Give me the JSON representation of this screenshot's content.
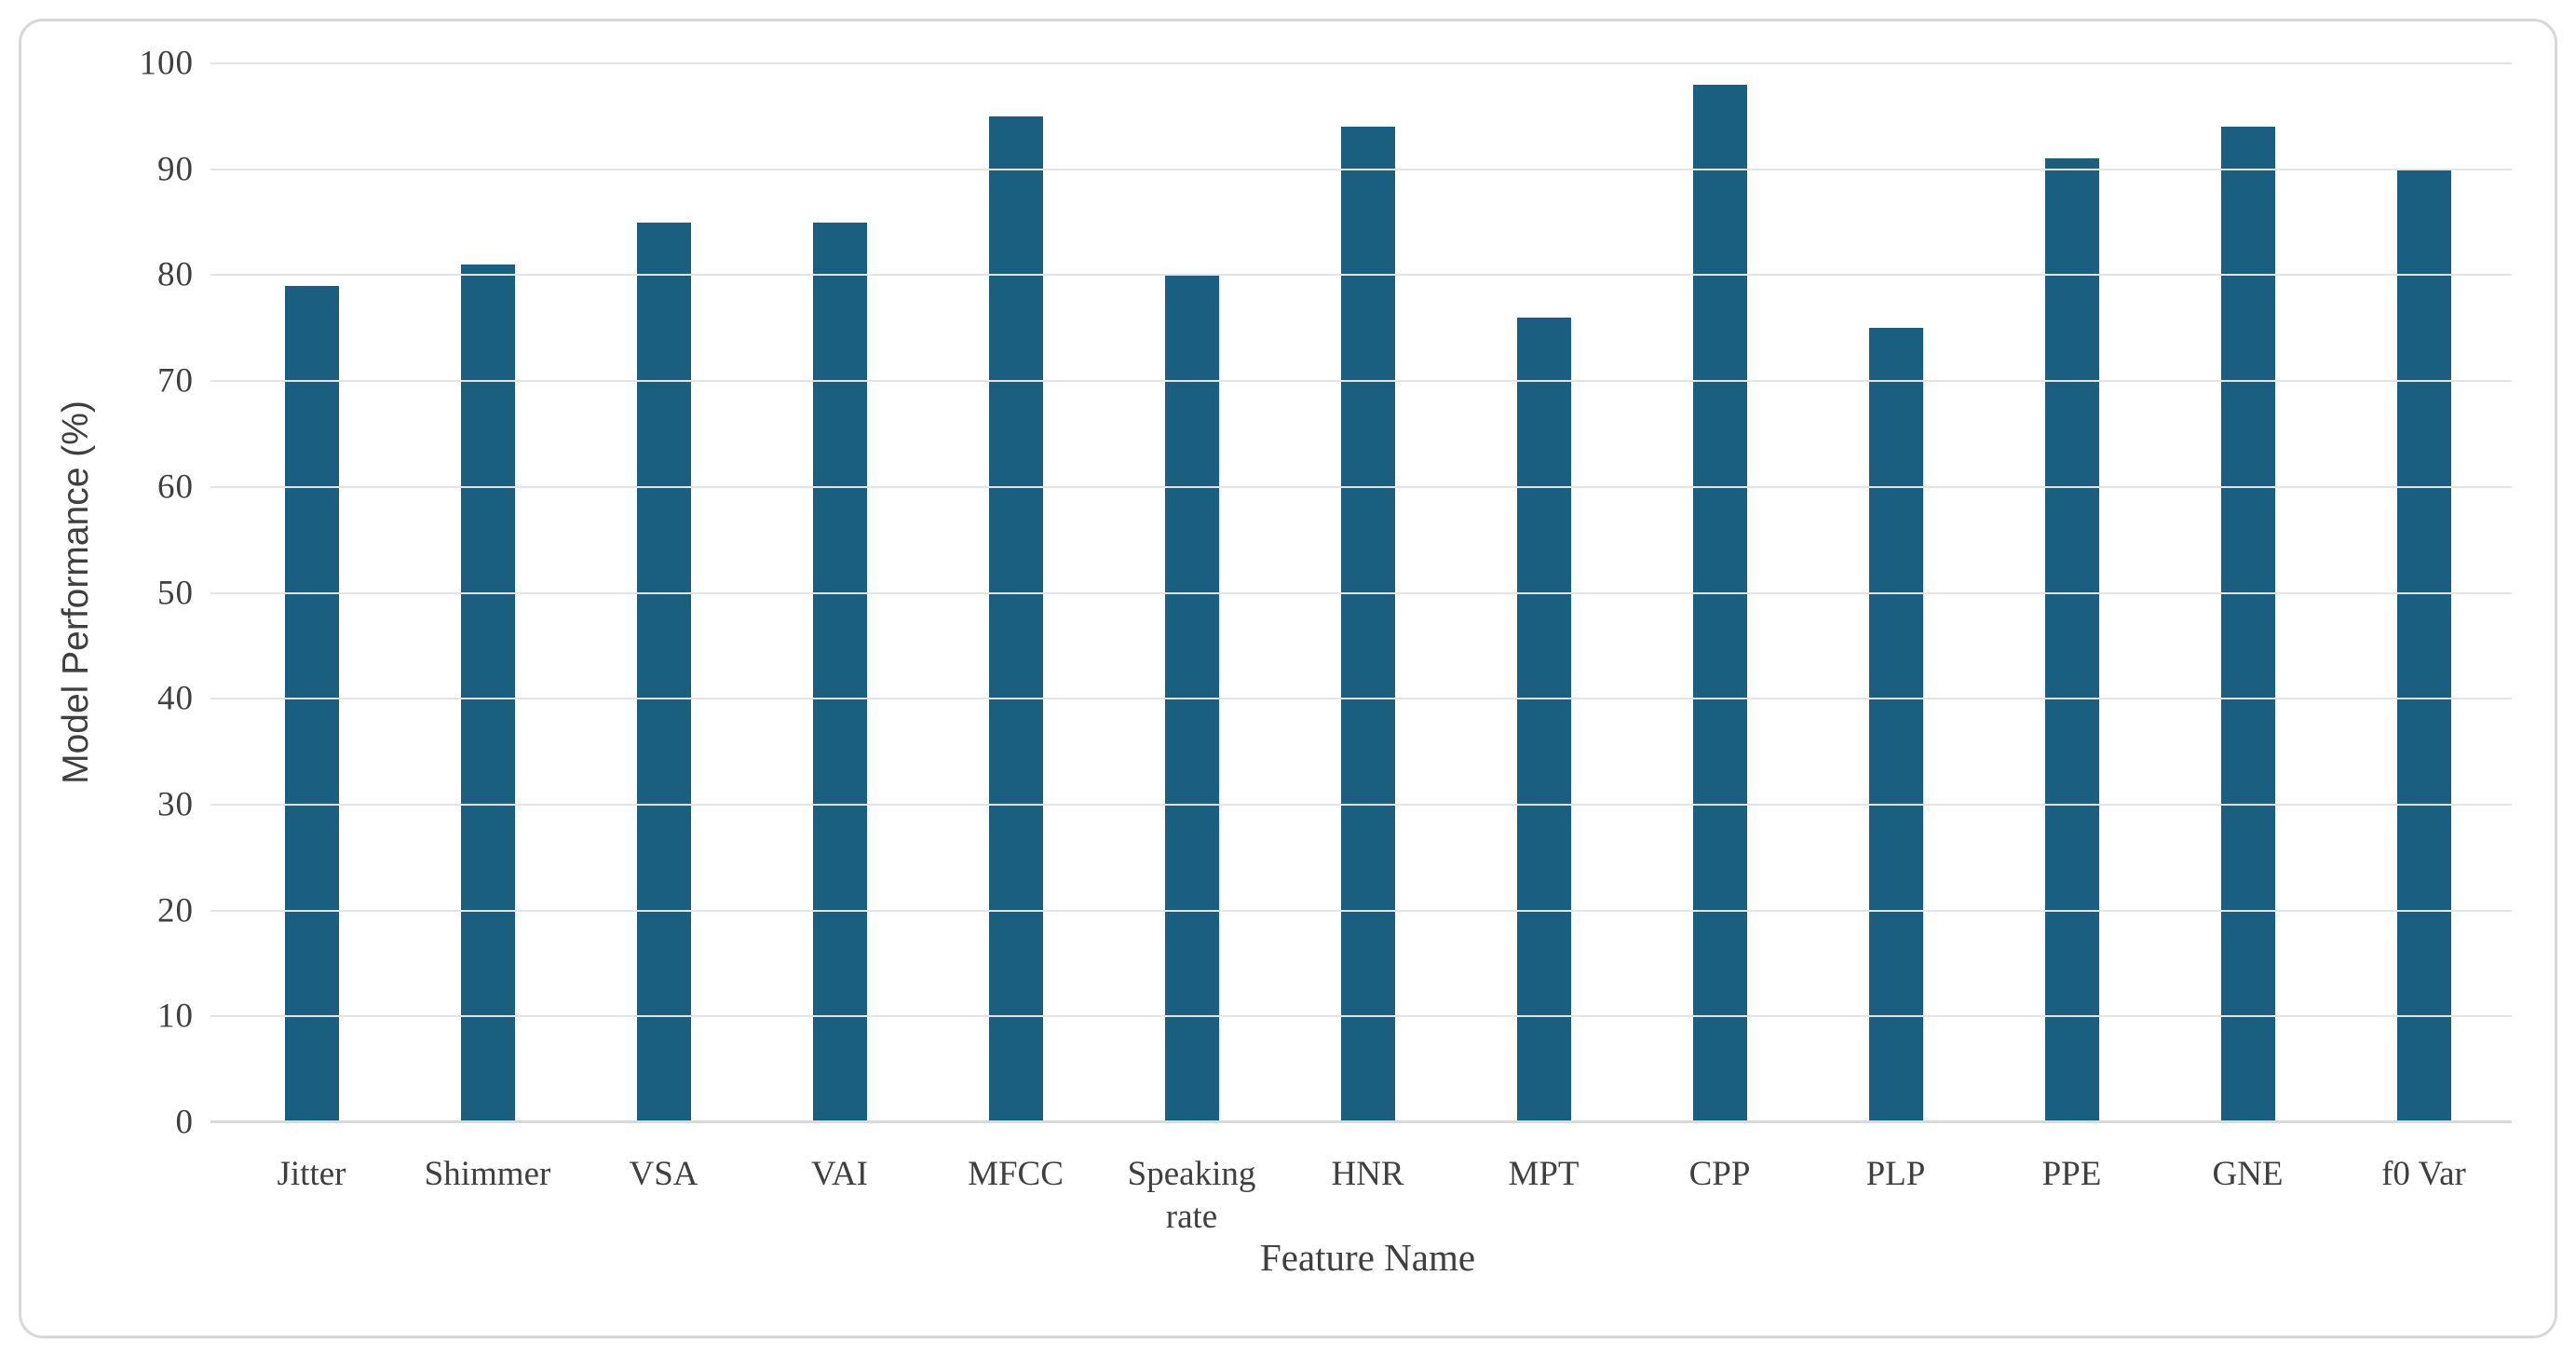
{
  "chart_data": {
    "type": "bar",
    "title": "",
    "xlabel": "Feature Name",
    "ylabel": "Model Performance (%)",
    "categories": [
      "Jitter",
      "Shimmer",
      "VSA",
      "VAI",
      "MFCC",
      "Speaking rate",
      "HNR",
      "MPT",
      "CPP",
      "PLP",
      "PPE",
      "GNE",
      "f0 Var"
    ],
    "values": [
      79,
      81,
      85,
      85,
      95,
      80,
      94,
      76,
      98,
      75,
      91,
      94,
      90
    ],
    "ylim": [
      0,
      100
    ],
    "ytick_step": 10,
    "ytick_labels": [
      "0",
      "10",
      "20",
      "30",
      "40",
      "50",
      "60",
      "70",
      "80",
      "90",
      "100"
    ],
    "grid": "horizontal",
    "legend_position": "none",
    "bar_color": "#1B5F80",
    "gridline_color": "#E4E4E4",
    "baseline_color": "#D9D9D9",
    "text_color": "#3F3F3F",
    "border_color": "#D8D8D8",
    "background_color": "#FFFFFF"
  }
}
